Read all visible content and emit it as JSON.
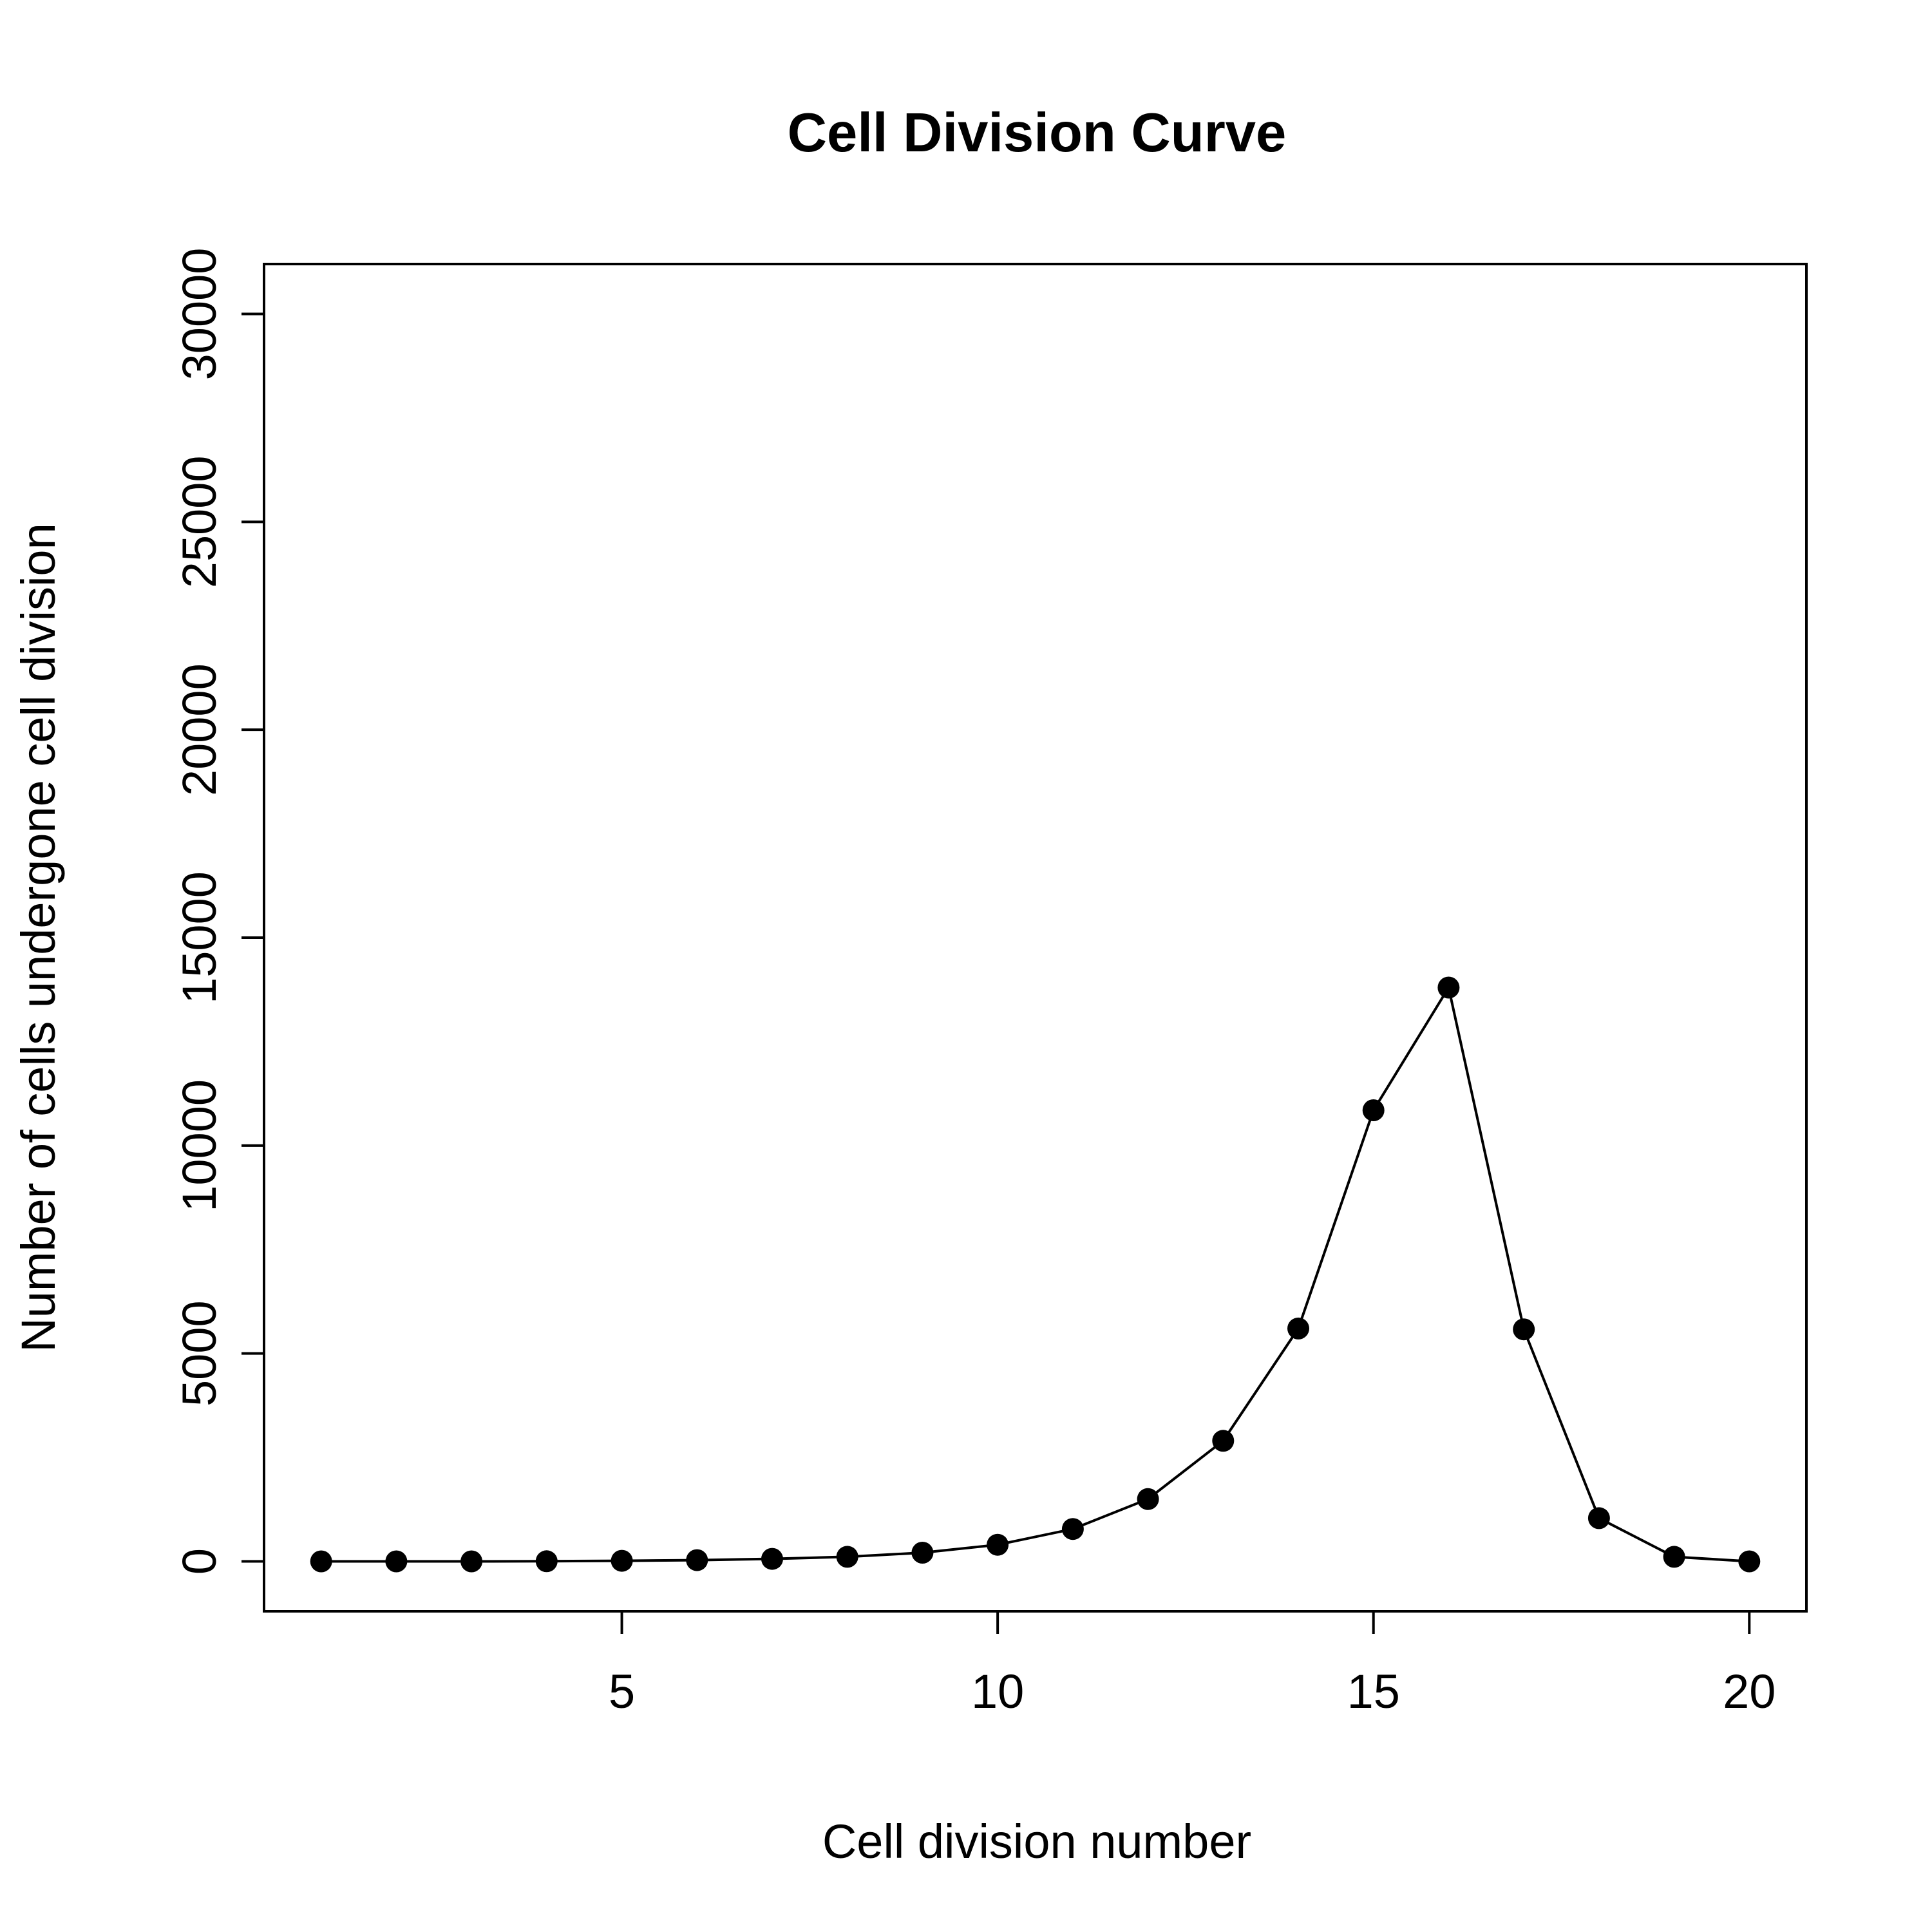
{
  "chart_data": {
    "type": "line",
    "title": "Cell Division Curve",
    "xlabel": "Cell division number",
    "ylabel": "Number of cells undergone cell division",
    "x": [
      1,
      2,
      3,
      4,
      5,
      6,
      7,
      8,
      9,
      10,
      11,
      12,
      13,
      14,
      15,
      16,
      17,
      18,
      19,
      20
    ],
    "values": [
      0,
      0,
      1,
      4,
      14,
      30,
      60,
      110,
      210,
      400,
      780,
      1500,
      2900,
      5600,
      10850,
      13800,
      5580,
      1040,
      110,
      0
    ],
    "xlim": [
      0.24,
      20.76
    ],
    "ylim": [
      -1200,
      31200
    ],
    "xticks": [
      5,
      10,
      15,
      20
    ],
    "xtick_labels": [
      "5",
      "10",
      "15",
      "20"
    ],
    "yticks": [
      0,
      5000,
      10000,
      15000,
      20000,
      25000,
      30000
    ],
    "ytick_labels": [
      "0",
      "5000",
      "10000",
      "15000",
      "20000",
      "25000",
      "30000"
    ],
    "grid": false,
    "legend": "none",
    "colors": {
      "line": "#000000",
      "point": "#000000",
      "background": "#ffffff"
    }
  }
}
